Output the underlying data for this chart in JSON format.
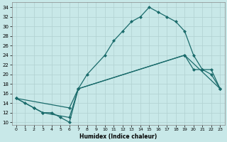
{
  "xlabel": "Humidex (Indice chaleur)",
  "bg_color": "#c8e8e8",
  "line_color": "#1a6b6b",
  "grid_color": "#b0d0d0",
  "ylim": [
    9.5,
    35
  ],
  "xlim": [
    -0.5,
    23.5
  ],
  "yticks": [
    10,
    12,
    14,
    16,
    18,
    20,
    22,
    24,
    26,
    28,
    30,
    32,
    34
  ],
  "xticks": [
    0,
    1,
    2,
    3,
    4,
    5,
    6,
    7,
    8,
    9,
    10,
    11,
    12,
    13,
    14,
    15,
    16,
    17,
    18,
    19,
    20,
    21,
    22,
    23
  ],
  "line1_x": [
    0,
    1,
    2,
    3,
    4,
    5,
    6,
    7,
    8,
    10,
    11,
    12,
    13,
    14,
    15,
    16,
    17,
    18,
    19,
    20,
    21,
    22,
    23
  ],
  "line1_y": [
    15,
    14,
    13,
    12,
    12,
    11,
    10,
    17,
    20,
    24,
    27,
    29,
    31,
    32,
    34,
    33,
    32,
    31,
    29,
    24,
    21,
    21,
    17
  ],
  "line2_x": [
    0,
    2,
    3,
    6,
    7,
    19,
    20,
    21,
    22,
    23
  ],
  "line2_y": [
    15,
    13,
    12,
    11,
    17,
    24,
    21,
    21,
    20,
    17
  ],
  "line3_x": [
    0,
    6,
    7,
    19,
    23
  ],
  "line3_y": [
    15,
    13,
    17,
    24,
    17
  ]
}
